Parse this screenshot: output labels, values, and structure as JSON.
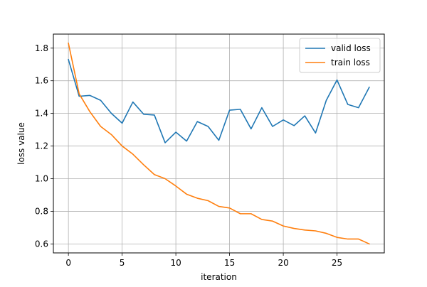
{
  "chart_data": {
    "type": "line",
    "title": "",
    "xlabel": "iteration",
    "ylabel": "loss value",
    "x": [
      0,
      1,
      2,
      3,
      4,
      5,
      6,
      7,
      8,
      9,
      10,
      11,
      12,
      13,
      14,
      15,
      16,
      17,
      18,
      19,
      20,
      21,
      22,
      23,
      24,
      25,
      26,
      27,
      28
    ],
    "xlim": [
      -1.4,
      29.4
    ],
    "ylim": [
      0.545,
      1.886
    ],
    "xticks": [
      0,
      5,
      10,
      15,
      20,
      25
    ],
    "yticks": [
      0.6,
      0.8,
      1.0,
      1.2,
      1.4,
      1.6,
      1.8
    ],
    "ytick_labels": [
      "0.6",
      "0.8",
      "1.0",
      "1.2",
      "1.4",
      "1.6",
      "1.8"
    ],
    "grid": true,
    "legend_position": "top-right",
    "series": [
      {
        "name": "valid loss",
        "color": "#1f77b4",
        "values": [
          1.73,
          1.505,
          1.51,
          1.48,
          1.4,
          1.34,
          1.47,
          1.395,
          1.39,
          1.22,
          1.285,
          1.23,
          1.35,
          1.32,
          1.235,
          1.42,
          1.425,
          1.305,
          1.435,
          1.32,
          1.36,
          1.325,
          1.385,
          1.28,
          1.48,
          1.605,
          1.455,
          1.435,
          1.56
        ]
      },
      {
        "name": "train loss",
        "color": "#ff7f0e",
        "values": [
          1.83,
          1.52,
          1.41,
          1.32,
          1.27,
          1.2,
          1.15,
          1.085,
          1.025,
          1.0,
          0.955,
          0.905,
          0.88,
          0.865,
          0.83,
          0.82,
          0.785,
          0.785,
          0.75,
          0.74,
          0.71,
          0.695,
          0.685,
          0.68,
          0.665,
          0.64,
          0.63,
          0.63,
          0.6
        ]
      }
    ]
  }
}
